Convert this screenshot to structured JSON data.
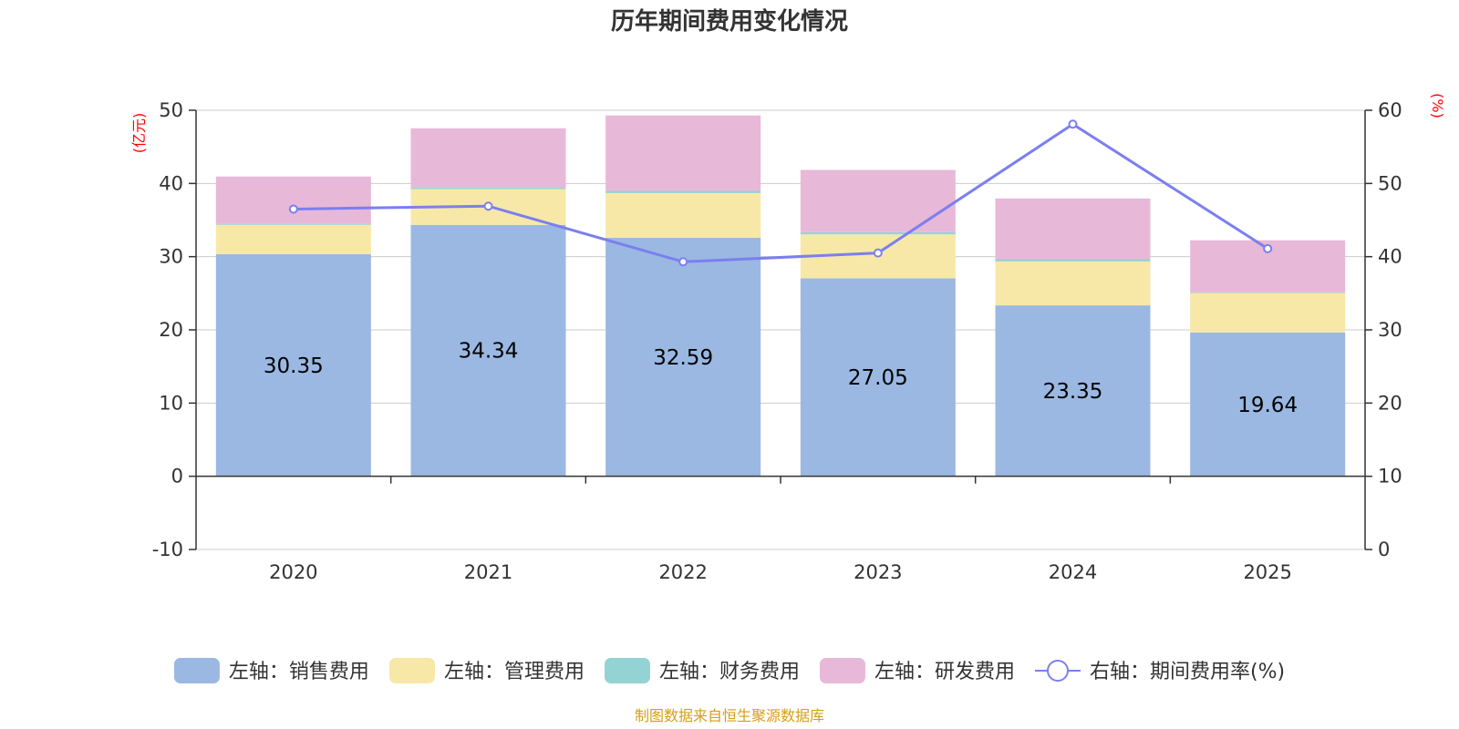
{
  "chart_data": {
    "type": "bar",
    "title": "历年期间费用变化情况",
    "categories": [
      "2020",
      "2021",
      "2022",
      "2023",
      "2024",
      "2025"
    ],
    "left_axis": {
      "unit": "(亿元)",
      "range": [
        -10,
        50
      ],
      "ticks": [
        50,
        40,
        30,
        20,
        10,
        0,
        -10
      ]
    },
    "right_axis": {
      "unit": "(%)",
      "range": [
        0,
        60
      ],
      "ticks": [
        60,
        50,
        40,
        30,
        20,
        10,
        0
      ]
    },
    "series": [
      {
        "name": "左轴：销售费用",
        "type": "bar",
        "axis": "left",
        "color": "#9bb8e2",
        "values": [
          30.35,
          34.34,
          32.59,
          27.05,
          23.35,
          19.64
        ],
        "labels": [
          "30.35",
          "34.34",
          "32.59",
          "27.05",
          "23.35",
          "19.64"
        ]
      },
      {
        "name": "左轴：管理费用",
        "type": "bar",
        "axis": "left",
        "color": "#f7e8a8",
        "values": [
          4.0,
          4.9,
          6.1,
          6.0,
          6.0,
          5.4
        ]
      },
      {
        "name": "左轴：财务费用",
        "type": "bar",
        "axis": "left",
        "color": "#94d3d3",
        "values": [
          0.1,
          0.2,
          0.3,
          0.3,
          0.3,
          0.1
        ]
      },
      {
        "name": "左轴：研发费用",
        "type": "bar",
        "axis": "left",
        "color": "#e8b8d8",
        "values": [
          6.5,
          8.1,
          10.3,
          8.5,
          8.3,
          7.1
        ]
      },
      {
        "name": "右轴：期间费用率(%)",
        "type": "line",
        "axis": "right",
        "color": "#7b7ff0",
        "values": [
          46.5,
          46.9,
          39.3,
          40.5,
          58.1,
          41.1
        ]
      }
    ],
    "grid": true,
    "legend_position": "bottom",
    "source": "制图数据来自恒生聚源数据库"
  }
}
